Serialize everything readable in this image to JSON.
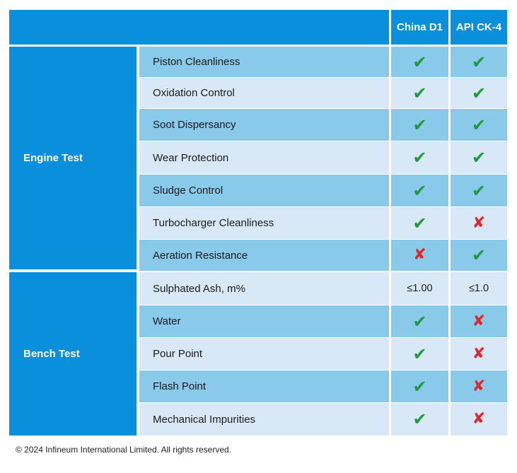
{
  "header": {
    "col1": "China D1",
    "col2": "API CK-4"
  },
  "groups": [
    {
      "label": "Engine Test"
    },
    {
      "label": "Bench Test"
    }
  ],
  "rows": [
    {
      "label": "Piston Cleanliness",
      "d1": "check",
      "ck4": "check"
    },
    {
      "label": "Oxidation Control",
      "d1": "check",
      "ck4": "check"
    },
    {
      "label": "Soot Dispersancy",
      "d1": "check",
      "ck4": "check"
    },
    {
      "label": "Wear Protection",
      "d1": "check",
      "ck4": "check"
    },
    {
      "label": "Sludge Control",
      "d1": "check",
      "ck4": "check"
    },
    {
      "label": "Turbocharger Cleanliness",
      "d1": "check",
      "ck4": "cross"
    },
    {
      "label": "Aeration Resistance",
      "d1": "cross",
      "ck4": "check"
    },
    {
      "label": "Sulphated Ash, m%",
      "d1": "≤1.00",
      "ck4": "≤1.0"
    },
    {
      "label": "Water",
      "d1": "check",
      "ck4": "cross"
    },
    {
      "label": "Pour Point",
      "d1": "check",
      "ck4": "cross"
    },
    {
      "label": "Flash Point",
      "d1": "check",
      "ck4": "cross"
    },
    {
      "label": "Mechanical Impurities",
      "d1": "check",
      "ck4": "cross"
    }
  ],
  "colors": {
    "header_blue": "#0a8fdc",
    "row_dark": "#89c9ea",
    "row_light": "#d8e8f6",
    "check": "#1f9a3c",
    "cross": "#e2262a"
  },
  "footer": "© 2024 Infineum International Limited. All rights reserved."
}
